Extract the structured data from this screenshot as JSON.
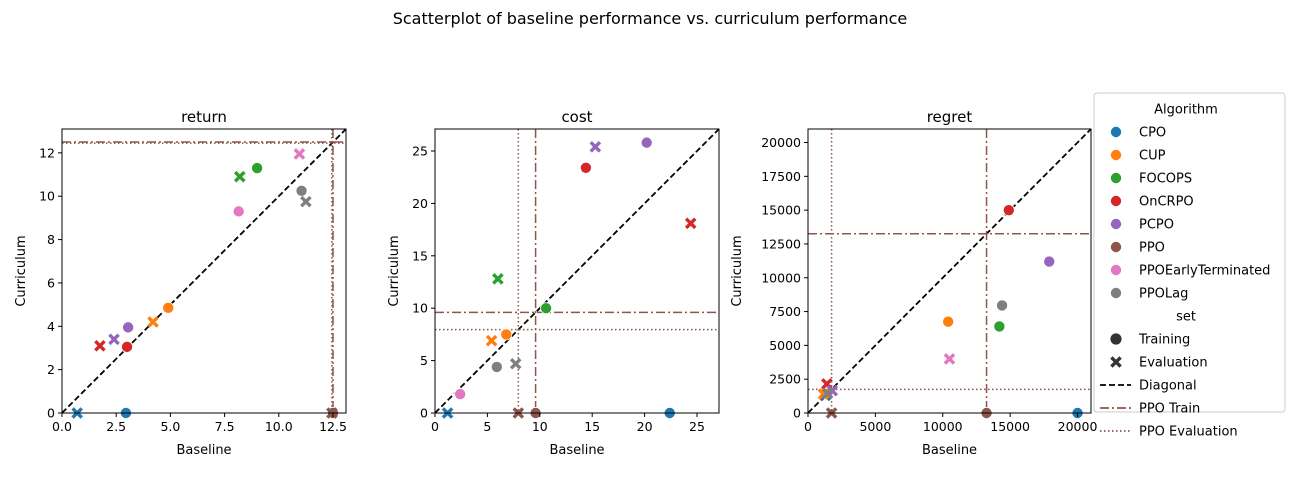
{
  "figure": {
    "suptitle": "Scatterplot of baseline performance vs. curriculum performance"
  },
  "colors": {
    "CPO": "#1f77b4",
    "CUP": "#ff7f0e",
    "FOCOPS": "#2ca02c",
    "OnCRPO": "#d62728",
    "PCPO": "#9467bd",
    "PPO": "#8c564b",
    "PPOEarlyTerminated": "#e377c2",
    "PPOLag": "#7f7f7f",
    "diagonal": "#000000",
    "ppo_line": "#8c564b"
  },
  "legend": {
    "algorithm_title": "Algorithm",
    "algorithms": [
      "CPO",
      "CUP",
      "FOCOPS",
      "OnCRPO",
      "PCPO",
      "PPO",
      "PPOEarlyTerminated",
      "PPOLag"
    ],
    "set_title": "set",
    "sets": [
      "Training",
      "Evaluation"
    ],
    "lines": [
      "Diagonal",
      "PPO Train",
      "PPO Evaluation"
    ],
    "placement": "right"
  },
  "chart_data": [
    {
      "type": "scatter",
      "title": "return",
      "xlabel": "Baseline",
      "ylabel": "Curriculum",
      "xlim": [
        0,
        13.1
      ],
      "ylim": [
        0,
        13.1
      ],
      "xticks": [
        0.0,
        2.5,
        5.0,
        7.5,
        10.0,
        12.5
      ],
      "xtick_labels": [
        "0.0",
        "2.5",
        "5.0",
        "7.5",
        "10.0",
        "12.5"
      ],
      "yticks": [
        0,
        2,
        4,
        6,
        8,
        10,
        12
      ],
      "ytick_labels": [
        "0",
        "2",
        "4",
        "6",
        "8",
        "10",
        "12"
      ],
      "ppo_train": 12.5,
      "ppo_eval": 12.45,
      "points": [
        {
          "algorithm": "CPO",
          "set": "Training",
          "x": 2.95,
          "y": 0.0
        },
        {
          "algorithm": "CPO",
          "set": "Evaluation",
          "x": 0.7,
          "y": 0.0
        },
        {
          "algorithm": "CUP",
          "set": "Training",
          "x": 4.9,
          "y": 4.85
        },
        {
          "algorithm": "CUP",
          "set": "Evaluation",
          "x": 4.2,
          "y": 4.2
        },
        {
          "algorithm": "FOCOPS",
          "set": "Training",
          "x": 9.0,
          "y": 11.3
        },
        {
          "algorithm": "FOCOPS",
          "set": "Evaluation",
          "x": 8.2,
          "y": 10.9
        },
        {
          "algorithm": "OnCRPO",
          "set": "Training",
          "x": 3.0,
          "y": 3.05
        },
        {
          "algorithm": "OnCRPO",
          "set": "Evaluation",
          "x": 1.75,
          "y": 3.1
        },
        {
          "algorithm": "PCPO",
          "set": "Training",
          "x": 3.05,
          "y": 3.95
        },
        {
          "algorithm": "PCPO",
          "set": "Evaluation",
          "x": 2.4,
          "y": 3.4
        },
        {
          "algorithm": "PPO",
          "set": "Training",
          "x": 12.5,
          "y": 0.0
        },
        {
          "algorithm": "PPO",
          "set": "Evaluation",
          "x": 12.45,
          "y": 0.0
        },
        {
          "algorithm": "PPOEarlyTerminated",
          "set": "Training",
          "x": 8.15,
          "y": 9.3
        },
        {
          "algorithm": "PPOEarlyTerminated",
          "set": "Evaluation",
          "x": 10.95,
          "y": 11.95
        },
        {
          "algorithm": "PPOLag",
          "set": "Training",
          "x": 11.05,
          "y": 10.25
        },
        {
          "algorithm": "PPOLag",
          "set": "Evaluation",
          "x": 11.25,
          "y": 9.75
        }
      ]
    },
    {
      "type": "scatter",
      "title": "cost",
      "xlabel": "Baseline",
      "ylabel": "Curriculum",
      "xlim": [
        0,
        27.1
      ],
      "ylim": [
        0,
        27.1
      ],
      "xticks": [
        0,
        5,
        10,
        15,
        20,
        25
      ],
      "xtick_labels": [
        "0",
        "5",
        "10",
        "15",
        "20",
        "25"
      ],
      "yticks": [
        0,
        5,
        10,
        15,
        20,
        25
      ],
      "ytick_labels": [
        "0",
        "5",
        "10",
        "15",
        "20",
        "25"
      ],
      "ppo_train": 9.6,
      "ppo_eval": 7.95,
      "points": [
        {
          "algorithm": "CPO",
          "set": "Training",
          "x": 22.4,
          "y": 0.0
        },
        {
          "algorithm": "CPO",
          "set": "Evaluation",
          "x": 1.2,
          "y": 0.0
        },
        {
          "algorithm": "CUP",
          "set": "Training",
          "x": 6.8,
          "y": 7.5
        },
        {
          "algorithm": "CUP",
          "set": "Evaluation",
          "x": 5.4,
          "y": 6.9
        },
        {
          "algorithm": "FOCOPS",
          "set": "Training",
          "x": 10.6,
          "y": 10.0
        },
        {
          "algorithm": "FOCOPS",
          "set": "Evaluation",
          "x": 6.0,
          "y": 12.8
        },
        {
          "algorithm": "OnCRPO",
          "set": "Training",
          "x": 14.4,
          "y": 23.4
        },
        {
          "algorithm": "OnCRPO",
          "set": "Evaluation",
          "x": 24.4,
          "y": 18.1
        },
        {
          "algorithm": "PCPO",
          "set": "Training",
          "x": 20.2,
          "y": 25.8
        },
        {
          "algorithm": "PCPO",
          "set": "Evaluation",
          "x": 15.3,
          "y": 25.4
        },
        {
          "algorithm": "PPO",
          "set": "Training",
          "x": 9.6,
          "y": 0.0
        },
        {
          "algorithm": "PPO",
          "set": "Evaluation",
          "x": 7.95,
          "y": 0.0
        },
        {
          "algorithm": "PPOEarlyTerminated",
          "set": "Training",
          "x": 2.4,
          "y": 1.8
        },
        {
          "algorithm": "PPOLag",
          "set": "Training",
          "x": 5.9,
          "y": 4.4
        },
        {
          "algorithm": "PPOLag",
          "set": "Evaluation",
          "x": 7.7,
          "y": 4.7
        }
      ]
    },
    {
      "type": "scatter",
      "title": "regret",
      "xlabel": "Baseline",
      "ylabel": "Curriculum",
      "xlim": [
        0,
        21000
      ],
      "ylim": [
        0,
        21000
      ],
      "xticks": [
        0,
        5000,
        10000,
        15000,
        20000
      ],
      "xtick_labels": [
        "0",
        "5000",
        "10000",
        "15000",
        "20000"
      ],
      "yticks": [
        0,
        2500,
        5000,
        7500,
        10000,
        12500,
        15000,
        17500,
        20000
      ],
      "ytick_labels": [
        "0",
        "2500",
        "5000",
        "7500",
        "10000",
        "12500",
        "15000",
        "17500",
        "20000"
      ],
      "ppo_train": 13250,
      "ppo_eval": 1750,
      "points": [
        {
          "algorithm": "CPO",
          "set": "Training",
          "x": 20000,
          "y": 0
        },
        {
          "algorithm": "CPO",
          "set": "Evaluation",
          "x": 1300,
          "y": 1300
        },
        {
          "algorithm": "CUP",
          "set": "Training",
          "x": 10400,
          "y": 6750
        },
        {
          "algorithm": "CUP",
          "set": "Evaluation",
          "x": 1150,
          "y": 1400
        },
        {
          "algorithm": "FOCOPS",
          "set": "Training",
          "x": 14200,
          "y": 6400
        },
        {
          "algorithm": "OnCRPO",
          "set": "Training",
          "x": 14900,
          "y": 15000
        },
        {
          "algorithm": "OnCRPO",
          "set": "Evaluation",
          "x": 1400,
          "y": 2150
        },
        {
          "algorithm": "PCPO",
          "set": "Training",
          "x": 17900,
          "y": 11200
        },
        {
          "algorithm": "PCPO",
          "set": "Evaluation",
          "x": 1800,
          "y": 1650
        },
        {
          "algorithm": "PPO",
          "set": "Training",
          "x": 13250,
          "y": 0
        },
        {
          "algorithm": "PPO",
          "set": "Evaluation",
          "x": 1750,
          "y": 0
        },
        {
          "algorithm": "PPOEarlyTerminated",
          "set": "Evaluation",
          "x": 10500,
          "y": 4000
        },
        {
          "algorithm": "PPOLag",
          "set": "Training",
          "x": 14400,
          "y": 7950
        },
        {
          "algorithm": "PPOLag",
          "set": "Evaluation",
          "x": 1450,
          "y": 1450
        }
      ]
    }
  ]
}
